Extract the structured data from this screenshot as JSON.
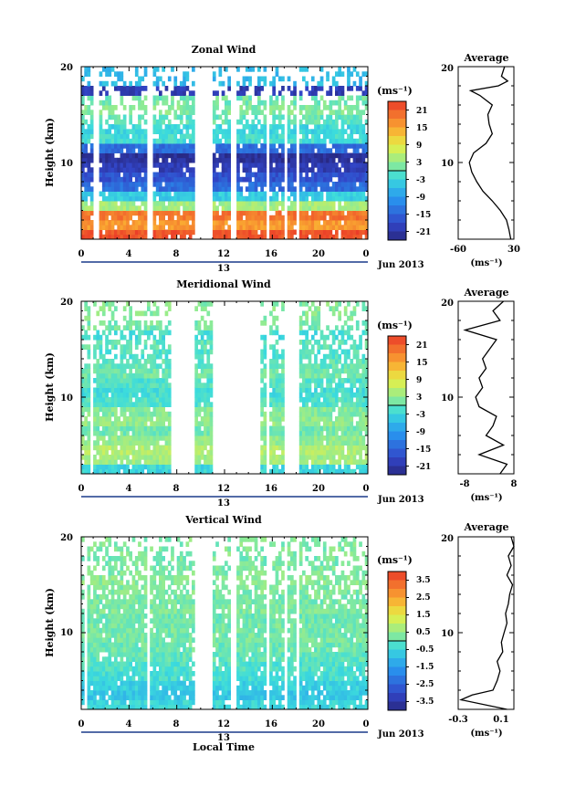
{
  "panels": [
    {
      "id": "zonal",
      "title": "Zonal Wind",
      "ylabel": "Height (km)",
      "yticks": [
        "20",
        "10"
      ],
      "xticks": [
        "0",
        "4",
        "8",
        "12",
        "16",
        "20",
        "0"
      ],
      "date_tick": "13",
      "date_label": "Jun 2013",
      "cb_unit": "(ms⁻¹)",
      "cb_ticks": [
        "21",
        "15",
        "9",
        "3",
        "-3",
        "-9",
        "-15",
        "-21"
      ],
      "avg_title": "Average",
      "avg_yticks": [
        "20",
        "10"
      ],
      "avg_xticks": [
        "-60",
        "30"
      ],
      "avg_xlabel": "(ms⁻¹)"
    },
    {
      "id": "meridional",
      "title": "Meridional Wind",
      "ylabel": "Height (km)",
      "yticks": [
        "20",
        "10"
      ],
      "xticks": [
        "0",
        "4",
        "8",
        "12",
        "16",
        "20",
        "0"
      ],
      "date_tick": "13",
      "date_label": "Jun 2013",
      "cb_unit": "(ms⁻¹)",
      "cb_ticks": [
        "21",
        "15",
        "9",
        "3",
        "-3",
        "-9",
        "-15",
        "-21"
      ],
      "avg_title": "Average",
      "avg_yticks": [
        "20",
        "10"
      ],
      "avg_xticks": [
        "-8",
        "8"
      ],
      "avg_xlabel": "(ms⁻¹)"
    },
    {
      "id": "vertical",
      "title": "Vertical Wind",
      "ylabel": "Height (km)",
      "yticks": [
        "20",
        "10"
      ],
      "xticks": [
        "0",
        "4",
        "8",
        "12",
        "16",
        "20",
        "0"
      ],
      "date_tick": "13",
      "date_label": "Jun 2013",
      "cb_unit": "(ms⁻¹)",
      "cb_ticks": [
        "3.5",
        "2.5",
        "1.5",
        "0.5",
        "-0.5",
        "-1.5",
        "-2.5",
        "-3.5"
      ],
      "avg_title": "Average",
      "avg_yticks": [
        "20",
        "10"
      ],
      "avg_xticks": [
        "-0.3",
        "0.1"
      ],
      "avg_xlabel": "(ms⁻¹)"
    }
  ],
  "xlabel": "Local Time",
  "chart_data": [
    {
      "type": "heatmap",
      "title": "Zonal Wind",
      "xlabel": "",
      "ylabel": "Height (km)",
      "xlim": [
        0,
        24
      ],
      "ylim": [
        2,
        20
      ],
      "colorbar_range": [
        -24,
        24
      ],
      "x_gaps_hours": [
        [
          1.0,
          1.5
        ],
        [
          5.5,
          6.0
        ],
        [
          9.5,
          11.0
        ],
        [
          12.5,
          13.0
        ],
        [
          15.5,
          15.8
        ],
        [
          17.0,
          17.3
        ],
        [
          17.9,
          18.3
        ]
      ],
      "profile": [
        {
          "h": 2.5,
          "v": 22
        },
        {
          "h": 3.5,
          "v": 16
        },
        {
          "h": 4.5,
          "v": 19
        },
        {
          "h": 5.5,
          "v": 4
        },
        {
          "h": 6.5,
          "v": -4
        },
        {
          "h": 7.5,
          "v": -14
        },
        {
          "h": 8.5,
          "v": -17
        },
        {
          "h": 9.5,
          "v": -20
        },
        {
          "h": 10.5,
          "v": -22
        },
        {
          "h": 11.5,
          "v": -14
        },
        {
          "h": 12.5,
          "v": -2
        },
        {
          "h": 13.5,
          "v": -3
        },
        {
          "h": 14.5,
          "v": 0
        },
        {
          "h": 15.5,
          "v": 2
        },
        {
          "h": 16.5,
          "v": 1
        },
        {
          "h": 17.5,
          "v": -20
        },
        {
          "h": 18.5,
          "v": -6
        }
      ],
      "average": {
        "xlim": [
          -60,
          30
        ],
        "height_km": [
          2,
          3,
          4,
          5,
          6,
          7,
          8,
          9,
          10,
          11,
          12,
          13,
          14,
          15,
          16,
          17,
          17.5,
          18,
          18.5,
          19,
          20
        ],
        "value": [
          25,
          22,
          18,
          8,
          -5,
          -20,
          -30,
          -38,
          -42,
          -35,
          -15,
          -5,
          -10,
          -12,
          -5,
          -25,
          -40,
          5,
          20,
          10,
          15
        ]
      }
    },
    {
      "type": "heatmap",
      "title": "Meridional Wind",
      "xlabel": "",
      "ylabel": "Height (km)",
      "xlim": [
        0,
        24
      ],
      "ylim": [
        2,
        20
      ],
      "colorbar_range": [
        -24,
        24
      ],
      "x_gaps_hours": [
        [
          0.7,
          1.0
        ],
        [
          7.5,
          9.5
        ],
        [
          11.0,
          15.0
        ],
        [
          15.5,
          15.8
        ],
        [
          17.0,
          18.3
        ]
      ],
      "profile": [
        {
          "h": 2.5,
          "v": -3
        },
        {
          "h": 3.5,
          "v": 4
        },
        {
          "h": 4.5,
          "v": 5
        },
        {
          "h": 5.5,
          "v": 3
        },
        {
          "h": 6.5,
          "v": 1
        },
        {
          "h": 7.5,
          "v": 3
        },
        {
          "h": 8.5,
          "v": 2
        },
        {
          "h": 9.5,
          "v": -1
        },
        {
          "h": 10.5,
          "v": -2
        },
        {
          "h": 11.5,
          "v": -1
        },
        {
          "h": 12.5,
          "v": 1
        },
        {
          "h": 13.5,
          "v": 0
        },
        {
          "h": 14.5,
          "v": -1
        },
        {
          "h": 15.5,
          "v": 0
        },
        {
          "h": 16.5,
          "v": -2
        },
        {
          "h": 17.5,
          "v": 1
        },
        {
          "h": 18.5,
          "v": 2
        }
      ],
      "average": {
        "xlim": [
          -8,
          8
        ],
        "height_km": [
          2,
          3,
          4,
          5,
          6,
          7,
          8,
          9,
          10,
          11,
          12,
          13,
          14,
          15,
          16,
          17,
          18,
          19,
          20
        ],
        "value": [
          4,
          6,
          -2,
          5,
          0,
          2,
          3,
          -2,
          -3,
          -1,
          -2,
          0,
          -1,
          1,
          3,
          -6,
          4,
          2,
          5
        ]
      }
    },
    {
      "type": "heatmap",
      "title": "Vertical Wind",
      "xlabel": "Local Time",
      "ylabel": "Height (km)",
      "xlim": [
        0,
        24
      ],
      "ylim": [
        2,
        20
      ],
      "colorbar_range": [
        -4,
        4
      ],
      "x_gaps_hours": [
        [
          0.2,
          0.5
        ],
        [
          5.5,
          5.8
        ],
        [
          9.5,
          11.0
        ],
        [
          12.5,
          13.0
        ],
        [
          15.5,
          15.8
        ],
        [
          17.0,
          17.3
        ],
        [
          17.9,
          18.3
        ]
      ],
      "profile": [
        {
          "h": 2.5,
          "v": -0.5
        },
        {
          "h": 3.5,
          "v": -0.8
        },
        {
          "h": 4.5,
          "v": -0.6
        },
        {
          "h": 5.5,
          "v": -0.3
        },
        {
          "h": 6.5,
          "v": -0.2
        },
        {
          "h": 7.5,
          "v": 0.0
        },
        {
          "h": 8.5,
          "v": 0.1
        },
        {
          "h": 9.5,
          "v": 0.2
        },
        {
          "h": 10.5,
          "v": 0.2
        },
        {
          "h": 11.5,
          "v": 0.1
        },
        {
          "h": 12.5,
          "v": 0.3
        },
        {
          "h": 13.5,
          "v": 0.2
        },
        {
          "h": 14.5,
          "v": 0.3
        },
        {
          "h": 15.5,
          "v": 0.4
        },
        {
          "h": 16.5,
          "v": 0.3
        },
        {
          "h": 17.5,
          "v": 0.2
        },
        {
          "h": 18.5,
          "v": 0.3
        }
      ],
      "average": {
        "xlim": [
          -0.3,
          0.1
        ],
        "height_km": [
          2,
          3,
          3.5,
          4,
          5,
          6,
          7,
          8,
          9,
          10,
          11,
          12,
          13,
          14,
          15,
          16,
          17,
          18,
          19,
          20
        ],
        "value": [
          0.05,
          -0.28,
          -0.2,
          -0.05,
          -0.02,
          0.0,
          -0.02,
          0.02,
          0.01,
          0.03,
          0.05,
          0.04,
          0.06,
          0.07,
          0.09,
          0.05,
          0.08,
          0.06,
          0.1,
          0.08
        ]
      }
    }
  ]
}
